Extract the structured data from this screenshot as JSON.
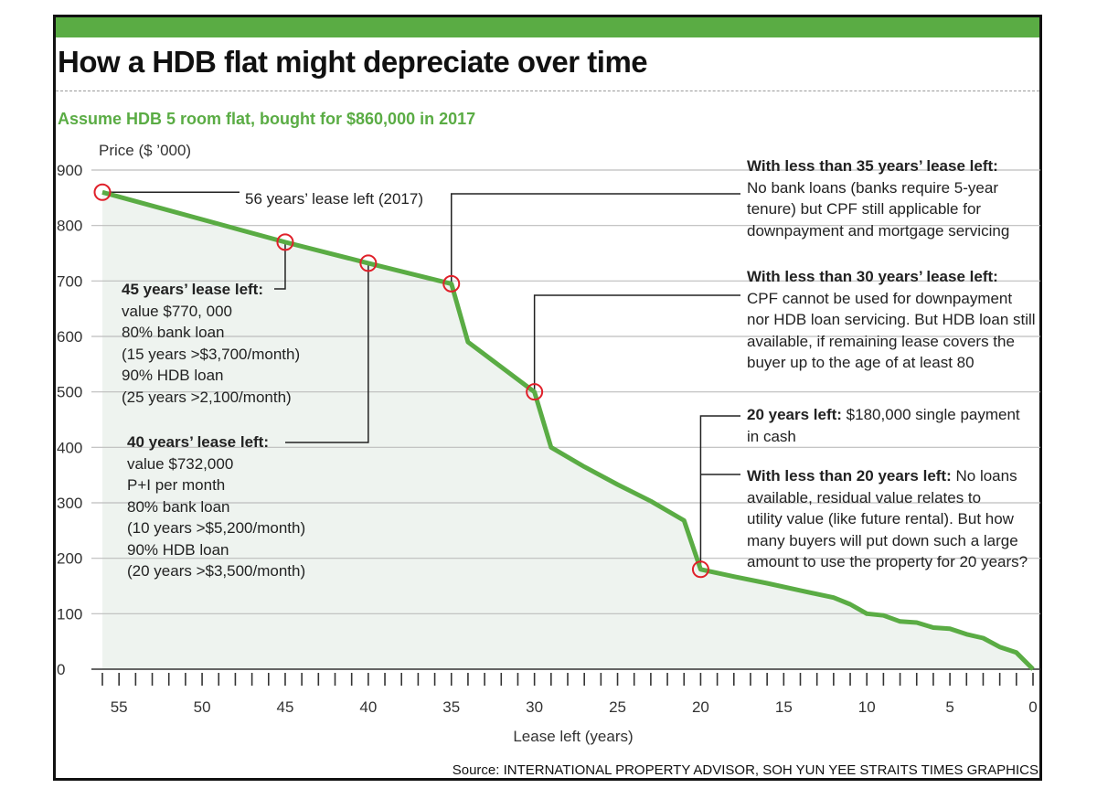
{
  "title": "How a HDB flat might depreciate over time",
  "subtitle": "Assume HDB 5 room flat, bought for $860,000 in 2017",
  "source": "Source: INTERNATIONAL PROPERTY ADVISOR, SOH YUN YEE   STRAITS TIMES GRAPHICS",
  "colors": {
    "accent": "#5aac44",
    "marker": "#e0202a",
    "area": "#eef3ef",
    "frame": "#111111"
  },
  "chart_data": {
    "type": "area",
    "title": "How a HDB flat might depreciate over time",
    "subtitle": "Assume HDB 5 room flat, bought for $860,000 in 2017",
    "xlabel": "Lease left (years)",
    "ylabel": "Price ($ ’000)",
    "xlim": [
      56,
      0
    ],
    "ylim": [
      0,
      900
    ],
    "x_reversed": true,
    "grid": true,
    "x_ticks": [
      55,
      50,
      45,
      40,
      35,
      30,
      25,
      20,
      15,
      10,
      5,
      0
    ],
    "y_ticks": [
      0,
      100,
      200,
      300,
      400,
      500,
      600,
      700,
      800,
      900
    ],
    "series": [
      {
        "x": [
          56,
          45,
          40,
          35,
          34,
          30,
          29,
          27,
          25,
          23,
          21,
          20,
          18,
          16,
          14,
          12,
          11,
          10,
          9,
          8,
          7,
          6,
          5,
          4,
          3,
          2,
          1,
          0
        ],
        "y": [
          860,
          770,
          732,
          695,
          590,
          500,
          400,
          365,
          333,
          303,
          268,
          180,
          167,
          155,
          142,
          129,
          117,
          100,
          97,
          86,
          84,
          75,
          73,
          63,
          56,
          40,
          30,
          0
        ]
      }
    ],
    "highlighted_points": [
      {
        "x": 56,
        "y": 860
      },
      {
        "x": 45,
        "y": 770
      },
      {
        "x": 40,
        "y": 732
      },
      {
        "x": 35,
        "y": 695
      },
      {
        "x": 30,
        "y": 500
      },
      {
        "x": 20,
        "y": 180
      }
    ],
    "annotations": [
      {
        "id": "a56",
        "lines": [
          {
            "bold": "",
            "text": "56 years’ lease left (2017)"
          }
        ]
      },
      {
        "id": "a45",
        "lines": [
          {
            "bold": "45 years’ lease left:",
            "text": ""
          },
          {
            "bold": "",
            "text": "value $770, 000"
          },
          {
            "bold": "",
            "text": "80% bank loan"
          },
          {
            "bold": "",
            "text": "(15 years >$3,700/month)"
          },
          {
            "bold": "",
            "text": "90% HDB loan"
          },
          {
            "bold": "",
            "text": "(25 years >2,100/month)"
          }
        ]
      },
      {
        "id": "a40",
        "lines": [
          {
            "bold": "40 years’ lease left:",
            "text": ""
          },
          {
            "bold": "",
            "text": "value $732,000"
          },
          {
            "bold": "",
            "text": "P+I per month"
          },
          {
            "bold": "",
            "text": "80% bank loan"
          },
          {
            "bold": "",
            "text": "(10 years >$5,200/month)"
          },
          {
            "bold": "",
            "text": "90% HDB loan"
          },
          {
            "bold": "",
            "text": "(20 years >$3,500/month)"
          }
        ]
      },
      {
        "id": "a35",
        "lines": [
          {
            "bold": "With less than 35 years’ lease left:",
            "text": ""
          },
          {
            "bold": "",
            "text": "No bank loans (banks require 5-year"
          },
          {
            "bold": "",
            "text": "tenure) but CPF still applicable for"
          },
          {
            "bold": "",
            "text": "downpayment and mortgage servicing"
          }
        ]
      },
      {
        "id": "a30",
        "lines": [
          {
            "bold": "With less than 30 years’ lease left:",
            "text": ""
          },
          {
            "bold": "",
            "text": "CPF cannot be used for downpayment"
          },
          {
            "bold": "",
            "text": "nor HDB loan servicing. But HDB loan still"
          },
          {
            "bold": "",
            "text": "available, if remaining lease covers the"
          },
          {
            "bold": "",
            "text": "buyer up to the age of at least 80"
          }
        ]
      },
      {
        "id": "a20",
        "lines": [
          {
            "bold": "20 years left:",
            "text": " $180,000 single payment"
          },
          {
            "bold": "",
            "text": "in cash"
          }
        ]
      },
      {
        "id": "a20b",
        "lines": [
          {
            "bold": "With less than 20 years left:",
            "text": " No loans"
          },
          {
            "bold": "",
            "text": "available, residual value relates to"
          },
          {
            "bold": "",
            "text": "utility value (like future rental). But how"
          },
          {
            "bold": "",
            "text": "many buyers will put down such a large"
          },
          {
            "bold": "",
            "text": "amount to use the property for 20 years?"
          }
        ]
      }
    ]
  }
}
